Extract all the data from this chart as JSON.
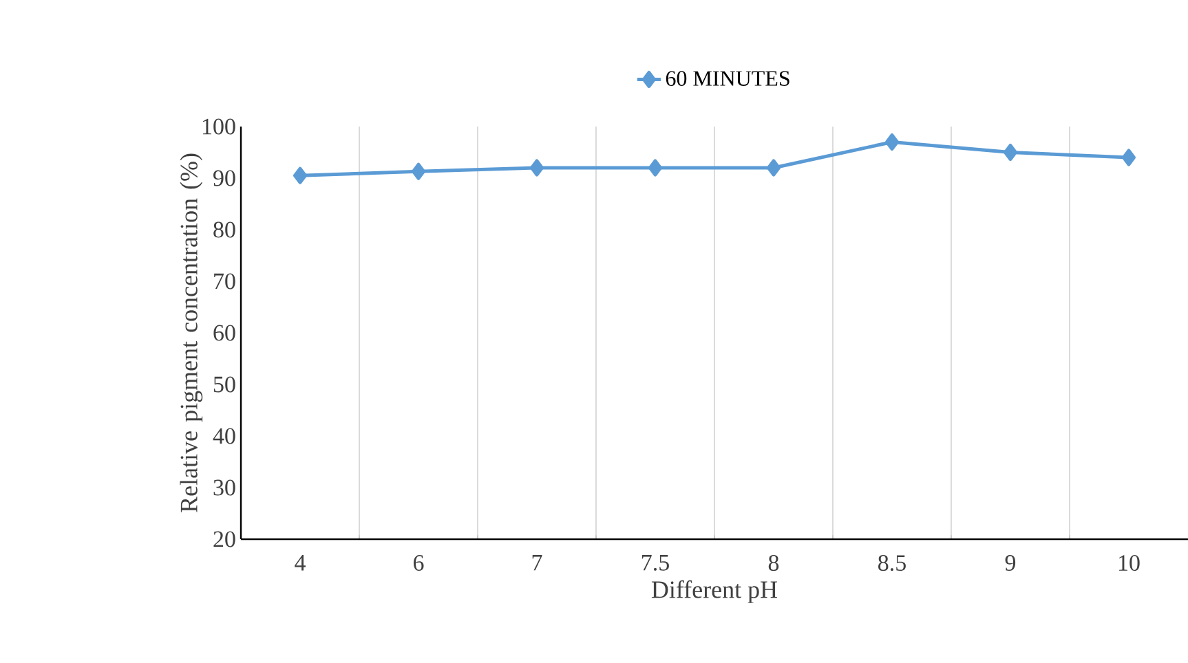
{
  "chart_data": {
    "type": "line",
    "xlabel": "Different pH",
    "ylabel": "Relative pigment concentration (%)",
    "categories": [
      "4",
      "6",
      "7",
      "7.5",
      "8",
      "8.5",
      "9",
      "10"
    ],
    "series": [
      {
        "name": "60 MINUTES",
        "color": "#5b9bd5",
        "values": [
          90.5,
          91.3,
          92,
          92,
          92,
          97,
          95,
          94
        ]
      }
    ],
    "ylim": [
      20,
      100
    ],
    "yticks": [
      20,
      30,
      40,
      50,
      60,
      70,
      80,
      90,
      100
    ],
    "grid": "x",
    "legend": "top",
    "marker": "diamond",
    "line_style": "solid"
  }
}
